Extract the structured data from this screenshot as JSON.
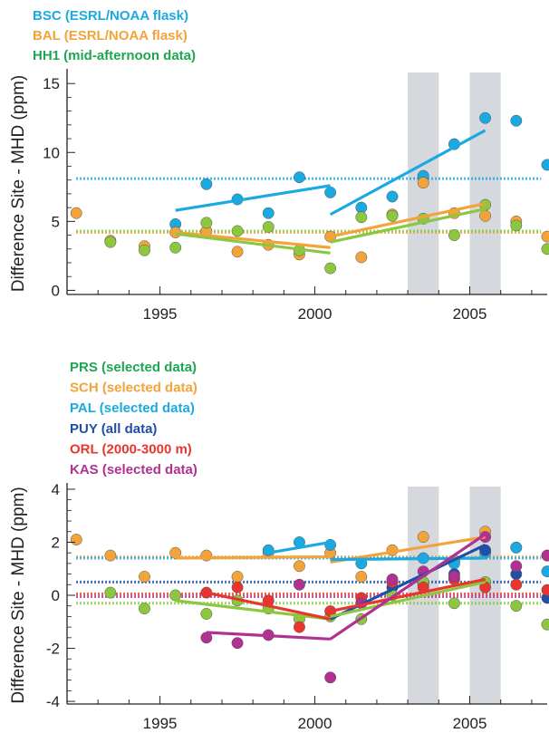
{
  "chart_data": [
    {
      "type": "scatter",
      "ylabel": "Difference Site - MHD (ppm)",
      "xlim": [
        1992,
        2007.5
      ],
      "ylim": [
        -0.3,
        15.8
      ],
      "xticks": [
        "1995",
        "2000",
        "2005"
      ],
      "yticks": [
        "0",
        "5",
        "10",
        "15"
      ],
      "shaded_periods": [
        [
          2003.0,
          2004.0
        ],
        [
          2005.0,
          2006.0
        ]
      ],
      "legend": [
        {
          "label": "BSC (ESRL/NOAA flask)",
          "color": "#1BA9E1"
        },
        {
          "label": "BAL (ESRL/NOAA flask)",
          "color": "#F2A33A"
        },
        {
          "label": "HH1 (mid-afternoon data)",
          "color": "#1EA552"
        }
      ],
      "series": [
        {
          "key": "BSC",
          "color": "#1BA9E1",
          "points": [
            [
              1995.5,
              4.8
            ],
            [
              1996.5,
              7.7
            ],
            [
              1997.5,
              6.6
            ],
            [
              1998.5,
              5.6
            ],
            [
              1999.5,
              8.2
            ],
            [
              2000.5,
              7.1
            ],
            [
              2001.5,
              6.0
            ],
            [
              2002.5,
              6.8
            ],
            [
              2003.5,
              8.3
            ],
            [
              2004.5,
              10.6
            ],
            [
              2005.5,
              12.5
            ],
            [
              2006.5,
              12.3
            ],
            [
              2007.5,
              9.1
            ]
          ],
          "mean": 8.1,
          "trends": [
            [
              [
                1995.5,
                5.8
              ],
              [
                2000.5,
                7.6
              ]
            ],
            [
              [
                2000.5,
                5.5
              ],
              [
                2005.5,
                11.6
              ]
            ]
          ]
        },
        {
          "key": "BAL",
          "color": "#F2A33A",
          "points": [
            [
              1992.3,
              5.6
            ],
            [
              1993.4,
              3.6
            ],
            [
              1994.5,
              3.2
            ],
            [
              1995.5,
              4.2
            ],
            [
              1996.5,
              4.3
            ],
            [
              1997.5,
              2.8
            ],
            [
              1998.5,
              3.3
            ],
            [
              1999.5,
              2.6
            ],
            [
              2000.5,
              3.9
            ],
            [
              2001.5,
              2.4
            ],
            [
              2002.5,
              5.5
            ],
            [
              2003.5,
              7.8
            ],
            [
              2004.5,
              5.6
            ],
            [
              2005.5,
              5.4
            ],
            [
              2006.5,
              5.0
            ],
            [
              2007.5,
              3.9
            ]
          ],
          "mean": 4.2,
          "trends": [
            [
              [
                1995.5,
                4.2
              ],
              [
                2000.5,
                3.1
              ]
            ],
            [
              [
                2000.5,
                3.9
              ],
              [
                2005.5,
                6.3
              ]
            ]
          ]
        },
        {
          "key": "HH1",
          "color": "#8DC63F",
          "points": [
            [
              1993.4,
              3.5
            ],
            [
              1994.5,
              2.9
            ],
            [
              1995.5,
              3.1
            ],
            [
              1996.5,
              4.9
            ],
            [
              1997.5,
              4.3
            ],
            [
              1998.5,
              4.6
            ],
            [
              1999.5,
              2.9
            ],
            [
              2000.5,
              1.6
            ],
            [
              2001.5,
              5.3
            ],
            [
              2002.5,
              5.4
            ],
            [
              2003.5,
              5.2
            ],
            [
              2004.5,
              4.0
            ],
            [
              2005.5,
              6.2
            ],
            [
              2006.5,
              4.7
            ],
            [
              2007.5,
              3.0
            ]
          ],
          "mean": 4.3,
          "trends": [
            [
              [
                1995.5,
                4.1
              ],
              [
                2000.5,
                2.7
              ]
            ],
            [
              [
                2000.5,
                3.5
              ],
              [
                2005.5,
                5.9
              ]
            ]
          ]
        }
      ]
    },
    {
      "type": "scatter",
      "ylabel": "Difference Site - MHD (ppm)",
      "xlim": [
        1992,
        2007.5
      ],
      "ylim": [
        -4.1,
        4.1
      ],
      "xticks": [
        "1995",
        "2000",
        "2005"
      ],
      "yticks": [
        "-4",
        "-2",
        "0",
        "2",
        "4"
      ],
      "shaded_periods": [
        [
          2003.0,
          2004.0
        ],
        [
          2005.0,
          2006.0
        ]
      ],
      "legend": [
        {
          "label": "PRS (selected data)",
          "color": "#1EA552"
        },
        {
          "label": "SCH (selected data)",
          "color": "#F2A33A"
        },
        {
          "label": "PAL (selected data)",
          "color": "#1BA9E1"
        },
        {
          "label": "PUY (all data)",
          "color": "#1F4FA8"
        },
        {
          "label": "ORL (2000-3000 m)",
          "color": "#E8352E"
        },
        {
          "label": "KAS (selected data)",
          "color": "#B0318F"
        }
      ],
      "series": [
        {
          "key": "SCH",
          "color": "#F2A33A",
          "points": [
            [
              1992.3,
              2.1
            ],
            [
              1993.4,
              1.5
            ],
            [
              1994.5,
              0.7
            ],
            [
              1995.5,
              1.6
            ],
            [
              1996.5,
              1.5
            ],
            [
              1997.5,
              0.7
            ],
            [
              1998.5,
              1.6
            ],
            [
              1999.5,
              1.1
            ],
            [
              2000.5,
              1.6
            ],
            [
              2001.5,
              0.7
            ],
            [
              2002.5,
              1.7
            ],
            [
              2003.5,
              2.2
            ],
            [
              2004.5,
              1.3
            ],
            [
              2005.5,
              2.4
            ],
            [
              2006.5,
              1.8
            ],
            [
              2007.5,
              1.5
            ]
          ],
          "mean": 1.45,
          "trends": [
            [
              [
                1995.5,
                1.4
              ],
              [
                2000.5,
                1.45
              ]
            ],
            [
              [
                2000.5,
                1.25
              ],
              [
                2005.5,
                2.2
              ]
            ]
          ]
        },
        {
          "key": "PAL",
          "color": "#1BA9E1",
          "points": [
            [
              1998.5,
              1.7
            ],
            [
              1999.5,
              2.0
            ],
            [
              2000.5,
              1.9
            ],
            [
              2001.5,
              1.2
            ],
            [
              2002.5,
              0.5
            ],
            [
              2003.5,
              1.4
            ],
            [
              2004.5,
              1.2
            ],
            [
              2005.5,
              1.6
            ],
            [
              2006.5,
              1.8
            ],
            [
              2007.5,
              0.9
            ]
          ],
          "mean": 1.4,
          "trends": [
            [
              [
                1998.5,
                1.6
              ],
              [
                2000.5,
                2.0
              ]
            ],
            [
              [
                2000.5,
                1.35
              ],
              [
                2005.5,
                1.4
              ]
            ]
          ]
        },
        {
          "key": "PUY",
          "color": "#1F4FA8",
          "points": [
            [
              2001.5,
              -0.3
            ],
            [
              2002.5,
              0.3
            ],
            [
              2003.5,
              0.4
            ],
            [
              2004.5,
              0.8
            ],
            [
              2005.5,
              1.7
            ],
            [
              2006.5,
              0.8
            ],
            [
              2007.5,
              -0.1
            ]
          ],
          "mean": 0.5,
          "trends": [
            [
              [
                2000.5,
                -0.9
              ],
              [
                2005.5,
                1.9
              ]
            ]
          ]
        },
        {
          "key": "PRS",
          "color": "#8DC63F",
          "points": [
            [
              1993.4,
              0.1
            ],
            [
              1994.5,
              -0.5
            ],
            [
              1995.5,
              0.0
            ],
            [
              1996.5,
              -0.7
            ],
            [
              1997.5,
              -0.2
            ],
            [
              1998.5,
              -0.5
            ],
            [
              1999.5,
              -0.9
            ],
            [
              2000.5,
              -0.8
            ],
            [
              2001.5,
              -0.9
            ],
            [
              2002.5,
              0.0
            ],
            [
              2003.5,
              0.5
            ],
            [
              2004.5,
              -0.3
            ],
            [
              2005.5,
              0.5
            ],
            [
              2006.5,
              -0.4
            ],
            [
              2007.5,
              -1.1
            ]
          ],
          "mean": -0.3,
          "trends": [
            [
              [
                1995.5,
                -0.2
              ],
              [
                2000.5,
                -0.9
              ]
            ],
            [
              [
                2000.5,
                -0.8
              ],
              [
                2005.5,
                0.5
              ]
            ]
          ]
        },
        {
          "key": "ORL",
          "color": "#E8352E",
          "points": [
            [
              1996.5,
              0.1
            ],
            [
              1997.5,
              0.3
            ],
            [
              1998.5,
              -0.2
            ],
            [
              1999.5,
              -1.2
            ],
            [
              2000.5,
              -0.6
            ],
            [
              2001.5,
              -0.1
            ],
            [
              2002.5,
              0.5
            ],
            [
              2003.5,
              0.3
            ],
            [
              2004.5,
              0.6
            ],
            [
              2005.5,
              0.3
            ],
            [
              2006.5,
              0.4
            ],
            [
              2007.5,
              0.2
            ]
          ],
          "mean": 0.05,
          "trends": [
            [
              [
                1996.5,
                0.1
              ],
              [
                2000.5,
                -0.9
              ]
            ],
            [
              [
                2000.5,
                -0.6
              ],
              [
                2005.5,
                0.6
              ]
            ]
          ]
        },
        {
          "key": "KAS",
          "color": "#B0318F",
          "points": [
            [
              1996.5,
              -1.6
            ],
            [
              1997.5,
              -1.8
            ],
            [
              1998.5,
              -1.5
            ],
            [
              1999.5,
              0.4
            ],
            [
              2000.5,
              -3.1
            ],
            [
              2001.5,
              -0.3
            ],
            [
              2002.5,
              0.6
            ],
            [
              2003.5,
              0.9
            ],
            [
              2004.5,
              0.7
            ],
            [
              2005.5,
              2.2
            ],
            [
              2006.5,
              1.1
            ],
            [
              2007.5,
              1.5
            ]
          ],
          "mean": -0.05,
          "trends": [
            [
              [
                1996.5,
                -1.4
              ],
              [
                2000.5,
                -1.65
              ]
            ],
            [
              [
                2000.5,
                -1.65
              ],
              [
                2005.5,
                2.3
              ]
            ]
          ]
        }
      ]
    }
  ]
}
